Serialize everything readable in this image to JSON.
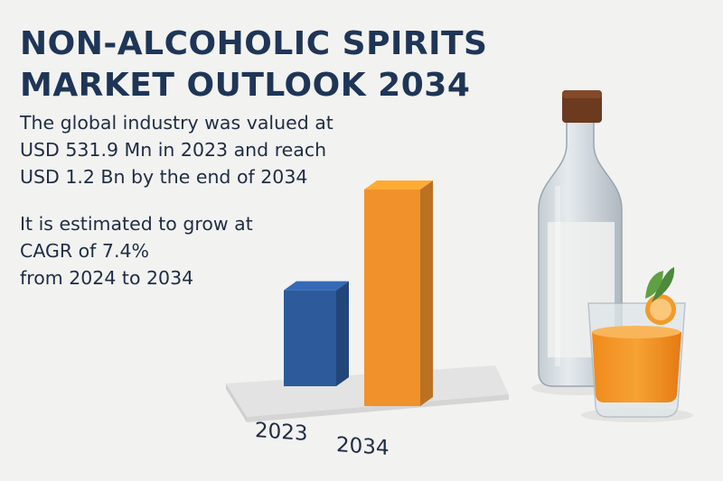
{
  "title": {
    "line1": "NON-ALCOHOLIC SPIRITS",
    "line2": "MARKET OUTLOOK 2034"
  },
  "stats": {
    "value": [
      "The global industry was valued at",
      "USD 531.9 Mn in 2023 and reach",
      "USD 1.2 Bn by the end of 2034"
    ],
    "growth": [
      "It is estimated to grow at",
      "CAGR of 7.4%",
      "from 2024 to 2034"
    ]
  },
  "chart_data": {
    "type": "bar",
    "categories": [
      "2023",
      "2034"
    ],
    "values": [
      531.9,
      1200
    ],
    "colors": [
      "#2c5a9a",
      "#f0912b"
    ]
  },
  "illustration": {
    "icons": [
      "bottle-icon",
      "orange-drink-glass-icon"
    ]
  }
}
